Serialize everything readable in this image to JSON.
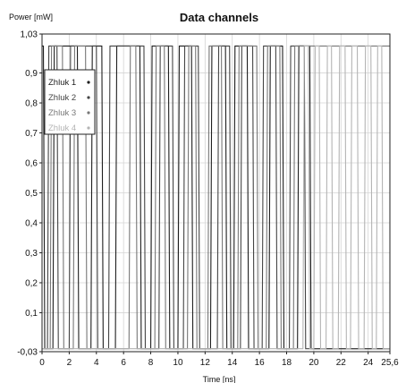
{
  "chart_data": {
    "type": "line",
    "title": "Data channels",
    "ylabel": "Power [mW]",
    "xlabel": "Time [ns]",
    "xlim": [
      0,
      25.6
    ],
    "ylim": [
      -0.03,
      1.03
    ],
    "x_ticks": [
      "0",
      "2",
      "4",
      "6",
      "8",
      "10",
      "12",
      "14",
      "16",
      "18",
      "20",
      "22",
      "24",
      "25,6"
    ],
    "x_tick_values": [
      0,
      2,
      4,
      6,
      8,
      10,
      12,
      14,
      16,
      18,
      20,
      22,
      24,
      25.6
    ],
    "y_ticks": [
      "-0,03",
      "0,1",
      "0,2",
      "0,3",
      "0,4",
      "0,5",
      "0,6",
      "0,7",
      "0,8",
      "0,9",
      "1,03"
    ],
    "y_tick_values": [
      -0.03,
      0.1,
      0.2,
      0.3,
      0.4,
      0.5,
      0.6,
      0.7,
      0.8,
      0.9,
      1.03
    ],
    "grid": true,
    "legend_position": "top-left",
    "levels": {
      "high": 0.99,
      "low": -0.02
    },
    "series": [
      {
        "name": "Zhluk 1",
        "color": "#1e1e1e",
        "x": [
          0,
          0.1,
          0.2,
          0.8,
          0.9,
          2.6,
          2.7,
          3.6,
          3.7,
          4.4,
          4.5,
          5.4,
          5.5,
          7.2,
          7.3,
          8.0,
          8.1,
          9.3,
          9.4,
          10.0,
          10.1,
          11.0,
          11.1,
          12.4,
          12.5,
          13.5,
          13.6,
          14.1,
          14.2,
          15.1,
          15.2,
          16.7,
          16.8,
          17.7,
          17.8,
          18.8,
          18.9,
          19.7,
          19.8,
          25.6
        ],
        "values": [
          0.99,
          0.99,
          -0.02,
          -0.02,
          0.99,
          0.99,
          -0.02,
          -0.02,
          0.99,
          0.99,
          -0.02,
          -0.02,
          0.99,
          0.99,
          -0.02,
          -0.02,
          0.99,
          0.99,
          -0.02,
          -0.02,
          0.99,
          0.99,
          -0.02,
          -0.02,
          0.99,
          0.99,
          -0.02,
          -0.02,
          0.99,
          0.99,
          -0.02,
          -0.02,
          0.99,
          0.99,
          -0.02,
          -0.02,
          0.99,
          0.99,
          -0.02,
          -0.02
        ]
      },
      {
        "name": "Zhluk 2",
        "color": "#444444",
        "x": [
          0,
          0.4,
          0.5,
          1.1,
          1.2,
          2.0,
          2.1,
          4.0,
          4.1,
          4.9,
          5.0,
          7.5,
          7.6,
          8.6,
          8.7,
          9.6,
          9.7,
          10.4,
          10.5,
          11.5,
          11.6,
          12.9,
          13.0,
          13.8,
          13.9,
          14.6,
          14.7,
          15.5,
          15.6,
          16.2,
          16.3,
          17.2,
          17.3,
          18.2,
          18.3,
          19.3,
          19.4,
          25.6
        ],
        "values": [
          -0.02,
          -0.02,
          0.99,
          0.99,
          -0.02,
          -0.02,
          0.99,
          0.99,
          -0.02,
          -0.02,
          0.99,
          0.99,
          -0.02,
          -0.02,
          0.99,
          0.99,
          -0.02,
          -0.02,
          0.99,
          0.99,
          -0.02,
          -0.02,
          0.99,
          0.99,
          -0.02,
          -0.02,
          0.99,
          0.99,
          -0.02,
          -0.02,
          0.99,
          0.99,
          -0.02,
          -0.02,
          0.99,
          0.99,
          -0.02,
          -0.02
        ]
      },
      {
        "name": "Zhluk 3",
        "color": "#777777",
        "x": [
          0,
          0.6,
          0.7,
          1.5,
          1.6,
          2.3,
          2.4,
          3.2,
          3.3,
          6.4,
          6.5,
          6.9,
          7.0,
          8.3,
          8.4,
          9.0,
          9.1,
          10.7,
          10.8,
          11.3,
          11.4,
          12.2,
          12.3,
          13.2,
          13.3,
          14.4,
          14.5,
          15.8,
          15.9,
          16.5,
          16.6,
          17.5,
          17.6,
          18.5,
          18.6,
          25.6
        ],
        "values": [
          -0.02,
          -0.02,
          0.99,
          0.99,
          -0.02,
          -0.02,
          0.99,
          0.99,
          -0.02,
          -0.02,
          0.99,
          0.99,
          -0.02,
          -0.02,
          0.99,
          0.99,
          -0.02,
          -0.02,
          0.99,
          0.99,
          -0.02,
          -0.02,
          0.99,
          0.99,
          -0.02,
          -0.02,
          0.99,
          0.99,
          -0.02,
          -0.02,
          0.99,
          0.99,
          -0.02,
          -0.02,
          0.99,
          0.99
        ]
      },
      {
        "name": "Zhluk 4",
        "color": "#b4b4b4",
        "x": [
          0,
          19.2,
          19.3,
          19.6,
          19.7,
          20.0,
          20.1,
          20.4,
          20.5,
          20.9,
          21.0,
          21.3,
          21.4,
          21.8,
          21.9,
          22.3,
          22.4,
          22.7,
          22.8,
          23.2,
          23.3,
          23.7,
          23.8,
          24.2,
          24.3,
          24.6,
          24.7,
          25.0,
          25.1,
          25.6
        ],
        "values": [
          -0.02,
          -0.02,
          0.99,
          0.99,
          -0.02,
          -0.02,
          0.99,
          0.99,
          -0.02,
          -0.02,
          0.99,
          0.99,
          -0.02,
          -0.02,
          0.99,
          0.99,
          -0.02,
          -0.02,
          0.99,
          0.99,
          -0.02,
          -0.02,
          0.99,
          0.99,
          -0.02,
          -0.02,
          0.99,
          0.99,
          -0.02,
          -0.02
        ]
      }
    ]
  }
}
